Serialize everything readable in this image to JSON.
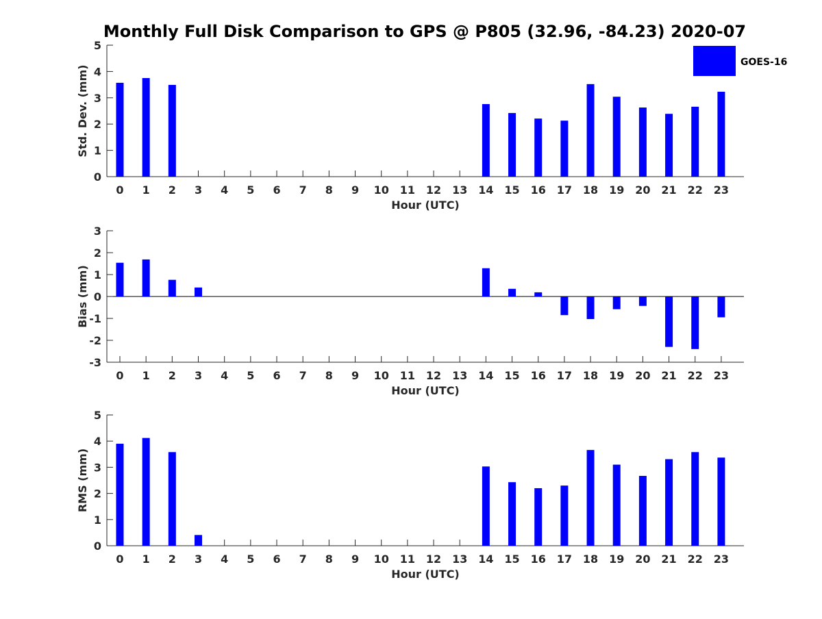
{
  "colors": {
    "bar": "#0000ff",
    "axis": "#262626",
    "background": "#ffffff"
  },
  "chart_data": {
    "type": "bar",
    "title": "Monthly Full Disk Comparison to GPS @ P805 (32.96, -84.23) 2020-07",
    "legend": {
      "entries": [
        "GOES-16"
      ],
      "placement": "top-right"
    },
    "categories": [
      0,
      1,
      2,
      3,
      4,
      5,
      6,
      7,
      8,
      9,
      10,
      11,
      12,
      13,
      14,
      15,
      16,
      17,
      18,
      19,
      20,
      21,
      22,
      23
    ],
    "panels": [
      {
        "id": "std",
        "xlabel": "Hour (UTC)",
        "ylabel": "Std. Dev. (mm)",
        "ylim": [
          0,
          5
        ],
        "yticks": [
          0,
          1,
          2,
          3,
          4,
          5
        ],
        "zero_line": false,
        "series": [
          {
            "name": "GOES-16",
            "values": [
              3.57,
              3.75,
              3.49,
              null,
              null,
              null,
              null,
              null,
              null,
              null,
              null,
              null,
              null,
              null,
              2.76,
              2.42,
              2.21,
              2.13,
              3.52,
              3.04,
              2.63,
              2.39,
              2.66,
              3.23
            ]
          }
        ]
      },
      {
        "id": "bias",
        "xlabel": "Hour (UTC)",
        "ylabel": "Bias (mm)",
        "ylim": [
          -3,
          3
        ],
        "yticks": [
          -3,
          -2,
          -1,
          0,
          1,
          2,
          3
        ],
        "zero_line": true,
        "series": [
          {
            "name": "GOES-16",
            "values": [
              1.54,
              1.69,
              0.76,
              0.41,
              null,
              null,
              null,
              null,
              null,
              null,
              null,
              null,
              null,
              null,
              1.29,
              0.35,
              0.19,
              -0.85,
              -1.03,
              -0.58,
              -0.43,
              -2.3,
              -2.4,
              -0.95
            ]
          }
        ]
      },
      {
        "id": "rms",
        "xlabel": "Hour (UTC)",
        "ylabel": "RMS (mm)",
        "ylim": [
          0,
          5
        ],
        "yticks": [
          0,
          1,
          2,
          3,
          4,
          5
        ],
        "zero_line": false,
        "series": [
          {
            "name": "GOES-16",
            "values": [
              3.9,
              4.12,
              3.58,
              0.41,
              null,
              null,
              null,
              null,
              null,
              null,
              null,
              null,
              null,
              null,
              3.03,
              2.43,
              2.2,
              2.3,
              3.66,
              3.1,
              2.67,
              3.31,
              3.58,
              3.37
            ]
          }
        ]
      }
    ]
  }
}
